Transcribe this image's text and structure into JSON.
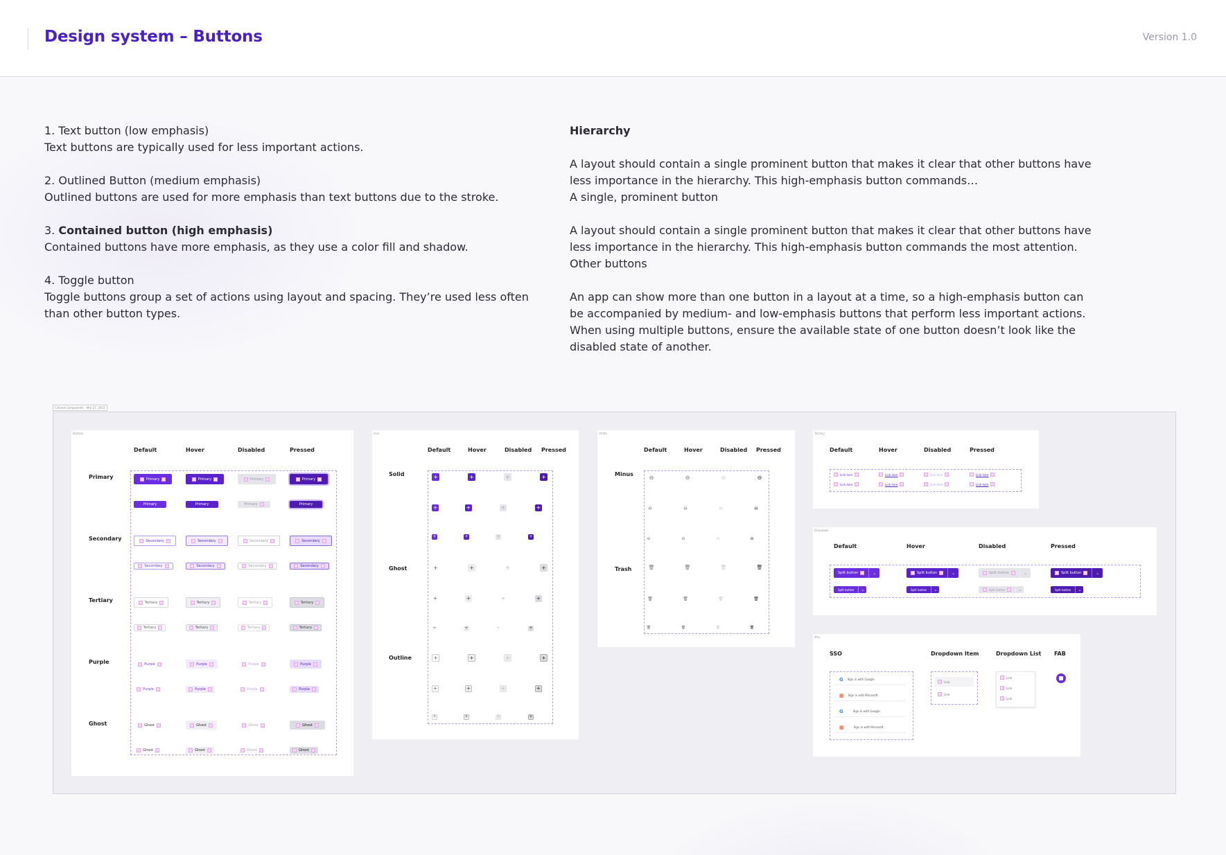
{
  "header": {
    "title": "Design system –  Buttons",
    "version": "Version 1.0"
  },
  "left_column": {
    "items": [
      {
        "title_prefix": "1. ",
        "title": "Text button (low emphasis)",
        "desc": "Text buttons are typically used for less important actions."
      },
      {
        "title_prefix": "2. ",
        "title": "Outlined Button (medium emphasis)",
        "desc": "Outlined buttons are used for more emphasis than text buttons due to the stroke."
      },
      {
        "title_prefix": "3. ",
        "title": "Contained button (high emphasis)",
        "desc": "Contained buttons have more emphasis, as they use a color fill and shadow."
      },
      {
        "title_prefix": "4. ",
        "title": "Toggle button",
        "desc": "Toggle buttons group a set of actions using layout and spacing. They’re used less often than other button types."
      }
    ]
  },
  "right_column": {
    "heading": "Hierarchy",
    "p1": "A layout should contain a single prominent button that makes it clear that other buttons have less importance in the hierarchy. This high-emphasis button commands…",
    "p1_sub": "A single, prominent button",
    "p2": "A layout should contain a single prominent button that makes it clear that other buttons have less importance in the hierarchy. This high-emphasis button commands the most attention.",
    "p2_sub": "Other buttons",
    "p3": "An app can show more than one button in a layout at a time, so a high-emphasis button can be accompanied by medium- and low-emphasis buttons that perform less important actions. When using multiple buttons, ensure the available state of one button doesn’t look like the disabled state of another."
  },
  "canvas": {
    "frame_tag": "Colored Components - Mar 27, 2023",
    "buttons_card": {
      "tag": "Buttons",
      "states": [
        "Default",
        "Hover",
        "Disabled",
        "Pressed"
      ],
      "rows": [
        {
          "label": "Primary",
          "button": "Primary"
        },
        {
          "label": "Secondary",
          "button": "Secondary"
        },
        {
          "label": "Tertiary",
          "button": "Tertiary"
        },
        {
          "label": "Purple",
          "button": "Purple"
        },
        {
          "label": "Ghost",
          "button": "Ghost"
        }
      ]
    },
    "icon_card": {
      "tag": "Icon",
      "states": [
        "Default",
        "Hover",
        "Disabled",
        "Pressed"
      ],
      "rows": [
        "Solid",
        "Ghost",
        "Outline"
      ],
      "glyph": "+"
    },
    "utility_card": {
      "tag": "Utility",
      "states": [
        "Default",
        "Hover",
        "Disabled",
        "Pressed"
      ],
      "rows": [
        "Minus",
        "Trash"
      ],
      "minus_icon": "⊖",
      "trash_icon": "🗑"
    },
    "tertiary_card": {
      "tag": "Tertiary",
      "states": [
        "Default",
        "Hover",
        "Disabled",
        "Pressed"
      ],
      "link": "Link here"
    },
    "dropdown_card": {
      "tag": "Dropdown",
      "states": [
        "Default",
        "Hover",
        "Disabled",
        "Pressed"
      ],
      "button": "Split button",
      "caret": "⌄"
    },
    "misc_card": {
      "tag": "Misc",
      "sections": [
        "SSO",
        "Dropdown Item",
        "Dropdown List",
        "FAB"
      ],
      "sso": [
        "Sign in with Google",
        "Sign in with Microsoft",
        "Sign in with Google",
        "Sign in with Microsoft"
      ],
      "link": "Link"
    }
  }
}
